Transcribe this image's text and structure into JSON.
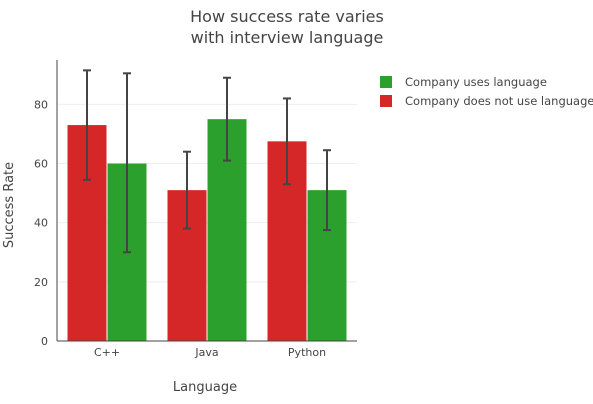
{
  "chart_data": {
    "type": "bar",
    "title_lines": [
      "How success rate varies",
      "with interview language"
    ],
    "xlabel": "Language",
    "ylabel": "Success Rate",
    "categories": [
      "C++",
      "Java",
      "Python"
    ],
    "ylim": [
      0,
      95
    ],
    "yticks": [
      0,
      20,
      40,
      60,
      80
    ],
    "grid": true,
    "legend_position": "top-right",
    "bar_order": [
      "Company does not use language",
      "Company uses language"
    ],
    "series": [
      {
        "name": "Company uses language",
        "color": "#2ca02c",
        "values": [
          60,
          75,
          51
        ],
        "error_upper": [
          90.5,
          89,
          64.5
        ],
        "error_lower": [
          30,
          61,
          37.5
        ]
      },
      {
        "name": "Company does not use language",
        "color": "#d62728",
        "values": [
          73,
          51,
          67.5
        ],
        "error_upper": [
          91.5,
          64,
          82
        ],
        "error_lower": [
          54.5,
          38,
          53
        ]
      }
    ]
  }
}
